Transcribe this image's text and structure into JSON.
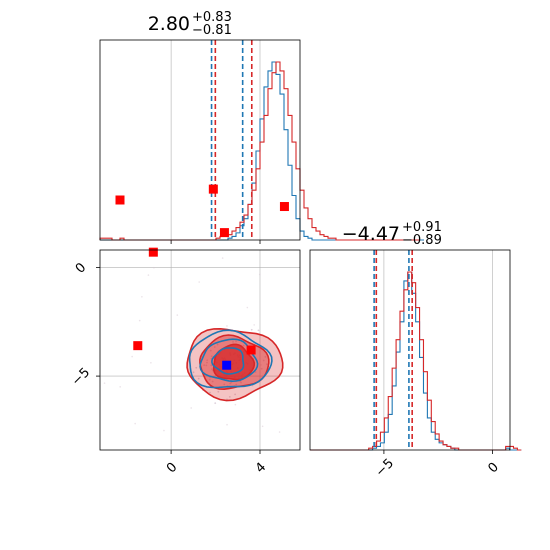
{
  "chart_data": {
    "type": "corner",
    "colors": {
      "blue": "#1f77b4",
      "red": "#d62728",
      "grid": "#b0b0b0",
      "marker_red": "#ff0000",
      "marker_blue": "#0000ff"
    },
    "axes": {
      "x0": {
        "range": [
          -3.2,
          5.8
        ],
        "ticks": [
          0,
          4
        ],
        "tick_labels": [
          "0",
          "4"
        ]
      },
      "x1": {
        "range": [
          -8.4,
          0.8
        ],
        "ticks": [
          -5,
          0
        ],
        "tick_labels": [
          "−5",
          "0"
        ]
      },
      "y1": {
        "range": [
          -8.4,
          0.8
        ],
        "ticks": [
          0,
          -5
        ],
        "tick_labels": [
          "0",
          "−5"
        ]
      }
    },
    "titles": [
      {
        "param": "x0",
        "median": "2.80",
        "upper": "+0.83",
        "lower": "−0.81"
      },
      {
        "param": "x1",
        "median": "−4.47",
        "upper": "+0.91",
        "lower": "−0.89"
      }
    ],
    "hist_x0": {
      "edges_start": -3.2,
      "bin_width": 0.18,
      "blue": [
        0,
        0,
        0,
        0,
        0,
        0,
        0,
        0,
        0,
        0,
        0,
        0,
        0,
        0,
        0,
        0,
        0,
        0,
        0,
        0,
        0,
        0,
        0,
        0,
        0,
        0,
        0,
        0,
        0,
        0,
        0,
        0,
        0.01,
        0.02,
        0.04,
        0.08,
        0.12,
        0.2,
        0.32,
        0.5,
        0.68,
        0.86,
        0.95,
        1.0,
        0.93,
        0.82,
        0.62,
        0.42,
        0.25,
        0.12,
        0.05,
        0.02,
        0.01,
        0,
        0,
        0,
        0,
        0,
        0,
        0,
        0,
        0,
        0,
        0,
        0,
        0,
        0,
        0,
        0,
        0,
        0,
        0,
        0,
        0,
        0,
        0,
        0,
        0,
        0,
        0,
        0
      ],
      "red": [
        0.01,
        0.01,
        0.01,
        0,
        0,
        0.01,
        0,
        0,
        0,
        0,
        0,
        0,
        0,
        0,
        0,
        0,
        0,
        0,
        0,
        0,
        0,
        0,
        0,
        0,
        0,
        0,
        0,
        0,
        0,
        0.01,
        0.02,
        0.02,
        0.03,
        0.05,
        0.07,
        0.1,
        0.14,
        0.2,
        0.28,
        0.4,
        0.55,
        0.7,
        0.85,
        0.94,
        1.0,
        0.95,
        0.85,
        0.7,
        0.55,
        0.4,
        0.28,
        0.18,
        0.12,
        0.07,
        0.05,
        0.03,
        0.02,
        0.01,
        0.01,
        0,
        0,
        0,
        0,
        0,
        0,
        0,
        0,
        0,
        0,
        0,
        0,
        0,
        0,
        0,
        0,
        0,
        0,
        0,
        0,
        0
      ],
      "quantiles_blue": [
        1.82,
        3.22
      ],
      "quantiles_red": [
        1.99,
        3.63
      ]
    },
    "hist_x1": {
      "edges_start": -8.4,
      "bin_width": 0.18,
      "blue": [
        0,
        0,
        0,
        0,
        0,
        0,
        0,
        0,
        0,
        0,
        0,
        0,
        0,
        0,
        0,
        0,
        0.01,
        0.02,
        0.04,
        0.1,
        0.2,
        0.36,
        0.55,
        0.72,
        0.95,
        1.0,
        0.88,
        0.72,
        0.52,
        0.32,
        0.18,
        0.1,
        0.06,
        0.04,
        0.03,
        0.02,
        0.01,
        0,
        0,
        0,
        0,
        0,
        0,
        0,
        0,
        0,
        0,
        0,
        0,
        0,
        0.01,
        0,
        0,
        0
      ],
      "red": [
        0,
        0,
        0,
        0,
        0,
        0,
        0,
        0,
        0,
        0,
        0,
        0,
        0,
        0,
        0,
        0.01,
        0.02,
        0.05,
        0.1,
        0.18,
        0.3,
        0.46,
        0.62,
        0.78,
        0.9,
        1.0,
        0.94,
        0.8,
        0.62,
        0.44,
        0.28,
        0.16,
        0.09,
        0.05,
        0.03,
        0.02,
        0.01,
        0.01,
        0,
        0,
        0,
        0,
        0,
        0,
        0,
        0,
        0,
        0,
        0,
        0,
        0.02,
        0.02,
        0.01,
        0
      ],
      "quantiles_blue": [
        -5.45,
        -3.85
      ],
      "quantiles_red": [
        -5.35,
        -3.7
      ]
    },
    "scatter_2d": {
      "contour_blue": {
        "center": [
          2.6,
          -4.3
        ],
        "radii": [
          [
            1.85,
            1.3
          ],
          [
            1.25,
            0.95
          ],
          [
            0.7,
            0.6
          ]
        ]
      },
      "contour_red": {
        "center": [
          2.8,
          -4.4
        ],
        "radii": [
          [
            2.15,
            1.6
          ],
          [
            1.55,
            1.2
          ],
          [
            0.9,
            0.8
          ]
        ]
      },
      "red_markers": [
        [
          -2.3,
          3.1
        ],
        [
          1.9,
          3.6
        ],
        [
          5.1,
          2.8
        ],
        [
          -0.8,
          0.7
        ],
        [
          2.4,
          1.6
        ],
        [
          -1.5,
          -3.6
        ],
        [
          3.6,
          -3.8
        ]
      ],
      "blue_marker": [
        2.5,
        -4.5
      ]
    }
  }
}
